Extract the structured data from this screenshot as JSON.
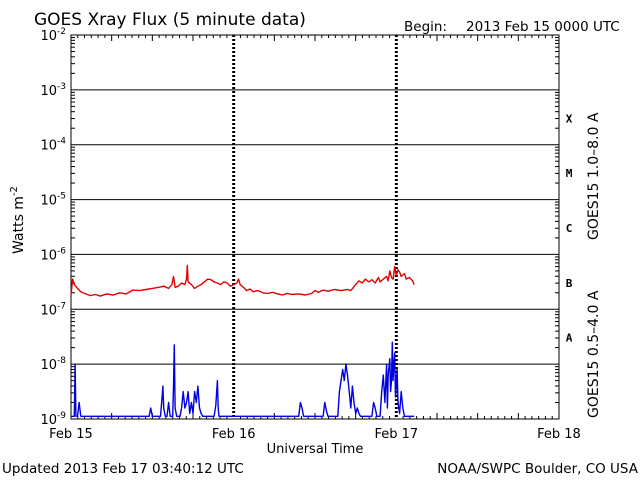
{
  "header": {
    "title": "GOES Xray Flux (5 minute data)",
    "begin_label": "Begin:",
    "begin_value": "2013 Feb 15 0000 UTC"
  },
  "footer": {
    "updated": "Updated 2013 Feb 17 03:40:12 UTC",
    "credit": "NOAA/SWPC Boulder, CO USA"
  },
  "colors": {
    "long_channel": "#e00000",
    "short_channel": "#0000e0",
    "grid": "#000000"
  },
  "chart_data": {
    "type": "line",
    "title": "GOES Xray Flux (5 minute data)",
    "xlabel": "Universal Time",
    "ylabel": "Watts m",
    "ylabel_sup": "-2",
    "yscale": "log",
    "ylim": [
      1e-09,
      0.01
    ],
    "xlim_days": [
      0,
      3
    ],
    "x_ticks": [
      {
        "day": 0,
        "label": "Feb 15"
      },
      {
        "day": 1,
        "label": "Feb 16"
      },
      {
        "day": 2,
        "label": "Feb 17"
      },
      {
        "day": 3,
        "label": "Feb 18"
      }
    ],
    "y_ticks": [
      {
        "exp": -9,
        "base": "10",
        "sup": "-9"
      },
      {
        "exp": -8,
        "base": "10",
        "sup": "-8"
      },
      {
        "exp": -7,
        "base": "10",
        "sup": "-7"
      },
      {
        "exp": -6,
        "base": "10",
        "sup": "-6"
      },
      {
        "exp": -5,
        "base": "10",
        "sup": "-5"
      },
      {
        "exp": -4,
        "base": "10",
        "sup": "-4"
      },
      {
        "exp": -3,
        "base": "10",
        "sup": "-3"
      },
      {
        "exp": -2,
        "base": "10",
        "sup": "-2"
      }
    ],
    "flare_classes": [
      {
        "label": "A",
        "exp": -7.5
      },
      {
        "label": "B",
        "exp": -6.5
      },
      {
        "label": "C",
        "exp": -5.5
      },
      {
        "label": "M",
        "exp": -4.5
      },
      {
        "label": "X",
        "exp": -3.5
      }
    ],
    "grid": true,
    "series": [
      {
        "name": "GOES15 1.0–8.0 A",
        "color": "#e00000",
        "points": [
          [
            0.0,
            -6.75
          ],
          [
            0.01,
            -6.45
          ],
          [
            0.02,
            -6.55
          ],
          [
            0.04,
            -6.62
          ],
          [
            0.06,
            -6.68
          ],
          [
            0.09,
            -6.72
          ],
          [
            0.12,
            -6.75
          ],
          [
            0.15,
            -6.73
          ],
          [
            0.18,
            -6.76
          ],
          [
            0.22,
            -6.72
          ],
          [
            0.26,
            -6.74
          ],
          [
            0.3,
            -6.7
          ],
          [
            0.34,
            -6.72
          ],
          [
            0.38,
            -6.65
          ],
          [
            0.42,
            -6.66
          ],
          [
            0.46,
            -6.64
          ],
          [
            0.5,
            -6.62
          ],
          [
            0.54,
            -6.6
          ],
          [
            0.57,
            -6.58
          ],
          [
            0.6,
            -6.62
          ],
          [
            0.62,
            -6.55
          ],
          [
            0.63,
            -6.4
          ],
          [
            0.64,
            -6.6
          ],
          [
            0.66,
            -6.58
          ],
          [
            0.68,
            -6.52
          ],
          [
            0.7,
            -6.55
          ],
          [
            0.71,
            -6.45
          ],
          [
            0.715,
            -6.2
          ],
          [
            0.72,
            -6.5
          ],
          [
            0.74,
            -6.55
          ],
          [
            0.76,
            -6.62
          ],
          [
            0.78,
            -6.58
          ],
          [
            0.8,
            -6.55
          ],
          [
            0.82,
            -6.5
          ],
          [
            0.84,
            -6.45
          ],
          [
            0.86,
            -6.46
          ],
          [
            0.88,
            -6.5
          ],
          [
            0.9,
            -6.52
          ],
          [
            0.92,
            -6.55
          ],
          [
            0.94,
            -6.5
          ],
          [
            0.96,
            -6.52
          ],
          [
            0.98,
            -6.58
          ],
          [
            1.0,
            -6.55
          ],
          [
            1.02,
            -6.52
          ],
          [
            1.03,
            -6.45
          ],
          [
            1.04,
            -6.55
          ],
          [
            1.06,
            -6.6
          ],
          [
            1.08,
            -6.66
          ],
          [
            1.1,
            -6.63
          ],
          [
            1.12,
            -6.68
          ],
          [
            1.15,
            -6.66
          ],
          [
            1.18,
            -6.7
          ],
          [
            1.21,
            -6.71
          ],
          [
            1.24,
            -6.69
          ],
          [
            1.27,
            -6.72
          ],
          [
            1.3,
            -6.74
          ],
          [
            1.33,
            -6.71
          ],
          [
            1.36,
            -6.73
          ],
          [
            1.4,
            -6.72
          ],
          [
            1.44,
            -6.74
          ],
          [
            1.48,
            -6.71
          ],
          [
            1.5,
            -6.66
          ],
          [
            1.52,
            -6.69
          ],
          [
            1.55,
            -6.65
          ],
          [
            1.58,
            -6.67
          ],
          [
            1.62,
            -6.64
          ],
          [
            1.66,
            -6.66
          ],
          [
            1.7,
            -6.64
          ],
          [
            1.72,
            -6.66
          ],
          [
            1.75,
            -6.55
          ],
          [
            1.77,
            -6.48
          ],
          [
            1.79,
            -6.52
          ],
          [
            1.81,
            -6.45
          ],
          [
            1.83,
            -6.5
          ],
          [
            1.85,
            -6.46
          ],
          [
            1.87,
            -6.52
          ],
          [
            1.89,
            -6.42
          ],
          [
            1.9,
            -6.5
          ],
          [
            1.92,
            -6.45
          ],
          [
            1.94,
            -6.4
          ],
          [
            1.95,
            -6.48
          ],
          [
            1.96,
            -6.3
          ],
          [
            1.97,
            -6.42
          ],
          [
            1.98,
            -6.45
          ],
          [
            1.99,
            -6.22
          ],
          [
            2.0,
            -6.38
          ],
          [
            2.01,
            -6.28
          ],
          [
            2.02,
            -6.32
          ],
          [
            2.03,
            -6.4
          ],
          [
            2.05,
            -6.35
          ],
          [
            2.06,
            -6.45
          ],
          [
            2.08,
            -6.42
          ],
          [
            2.1,
            -6.48
          ],
          [
            2.11,
            -6.55
          ]
        ]
      },
      {
        "name": "GOES15 0.5–4.0 A",
        "color": "#0000e0",
        "points": [
          [
            0.0,
            -8.95
          ],
          [
            0.02,
            -8.95
          ],
          [
            0.025,
            -8.0
          ],
          [
            0.03,
            -8.95
          ],
          [
            0.04,
            -8.95
          ],
          [
            0.05,
            -8.7
          ],
          [
            0.06,
            -8.95
          ],
          [
            0.12,
            -8.95
          ],
          [
            0.18,
            -8.95
          ],
          [
            0.25,
            -8.95
          ],
          [
            0.3,
            -8.95
          ],
          [
            0.35,
            -8.95
          ],
          [
            0.4,
            -8.95
          ],
          [
            0.45,
            -8.95
          ],
          [
            0.48,
            -8.95
          ],
          [
            0.49,
            -8.8
          ],
          [
            0.5,
            -8.95
          ],
          [
            0.55,
            -8.95
          ],
          [
            0.56,
            -8.6
          ],
          [
            0.565,
            -8.4
          ],
          [
            0.57,
            -8.8
          ],
          [
            0.58,
            -8.95
          ],
          [
            0.59,
            -8.95
          ],
          [
            0.6,
            -8.7
          ],
          [
            0.61,
            -8.95
          ],
          [
            0.625,
            -8.95
          ],
          [
            0.63,
            -8.4
          ],
          [
            0.635,
            -7.65
          ],
          [
            0.64,
            -8.8
          ],
          [
            0.65,
            -8.95
          ],
          [
            0.67,
            -8.95
          ],
          [
            0.68,
            -8.8
          ],
          [
            0.69,
            -8.5
          ],
          [
            0.7,
            -8.8
          ],
          [
            0.71,
            -8.7
          ],
          [
            0.72,
            -8.5
          ],
          [
            0.73,
            -8.9
          ],
          [
            0.74,
            -8.7
          ],
          [
            0.75,
            -8.9
          ],
          [
            0.76,
            -8.5
          ],
          [
            0.77,
            -8.7
          ],
          [
            0.78,
            -8.4
          ],
          [
            0.79,
            -8.8
          ],
          [
            0.8,
            -8.9
          ],
          [
            0.81,
            -8.95
          ],
          [
            0.85,
            -8.95
          ],
          [
            0.88,
            -8.95
          ],
          [
            0.89,
            -8.75
          ],
          [
            0.9,
            -8.3
          ],
          [
            0.905,
            -8.8
          ],
          [
            0.91,
            -8.95
          ],
          [
            0.95,
            -8.95
          ],
          [
            1.0,
            -8.95
          ],
          [
            1.05,
            -8.95
          ],
          [
            1.1,
            -8.95
          ],
          [
            1.15,
            -8.95
          ],
          [
            1.2,
            -8.95
          ],
          [
            1.25,
            -8.95
          ],
          [
            1.3,
            -8.95
          ],
          [
            1.35,
            -8.95
          ],
          [
            1.4,
            -8.95
          ],
          [
            1.41,
            -8.7
          ],
          [
            1.42,
            -8.8
          ],
          [
            1.43,
            -8.95
          ],
          [
            1.45,
            -8.95
          ],
          [
            1.5,
            -8.95
          ],
          [
            1.55,
            -8.95
          ],
          [
            1.56,
            -8.7
          ],
          [
            1.57,
            -8.85
          ],
          [
            1.58,
            -8.95
          ],
          [
            1.64,
            -8.95
          ],
          [
            1.65,
            -8.5
          ],
          [
            1.66,
            -8.3
          ],
          [
            1.67,
            -8.1
          ],
          [
            1.68,
            -8.3
          ],
          [
            1.69,
            -8.0
          ],
          [
            1.7,
            -8.2
          ],
          [
            1.71,
            -8.5
          ],
          [
            1.72,
            -8.8
          ],
          [
            1.73,
            -8.4
          ],
          [
            1.74,
            -8.7
          ],
          [
            1.75,
            -8.9
          ],
          [
            1.76,
            -8.8
          ],
          [
            1.77,
            -8.9
          ],
          [
            1.78,
            -8.95
          ],
          [
            1.8,
            -8.95
          ],
          [
            1.85,
            -8.95
          ],
          [
            1.86,
            -8.7
          ],
          [
            1.87,
            -8.8
          ],
          [
            1.88,
            -8.95
          ],
          [
            1.9,
            -8.95
          ],
          [
            1.91,
            -8.5
          ],
          [
            1.92,
            -8.2
          ],
          [
            1.93,
            -8.7
          ],
          [
            1.94,
            -8.0
          ],
          [
            1.945,
            -8.8
          ],
          [
            1.95,
            -8.2
          ],
          [
            1.96,
            -7.9
          ],
          [
            1.965,
            -8.5
          ],
          [
            1.97,
            -8.3
          ],
          [
            1.975,
            -7.6
          ],
          [
            1.98,
            -8.3
          ],
          [
            1.985,
            -8.0
          ],
          [
            1.99,
            -7.8
          ],
          [
            1.995,
            -8.6
          ],
          [
            2.0,
            -8.4
          ],
          [
            2.005,
            -8.1
          ],
          [
            2.01,
            -8.7
          ],
          [
            2.02,
            -8.9
          ],
          [
            2.03,
            -8.5
          ],
          [
            2.04,
            -8.8
          ],
          [
            2.05,
            -8.95
          ],
          [
            2.08,
            -8.95
          ],
          [
            2.1,
            -8.95
          ],
          [
            2.11,
            -8.95
          ]
        ]
      }
    ]
  }
}
